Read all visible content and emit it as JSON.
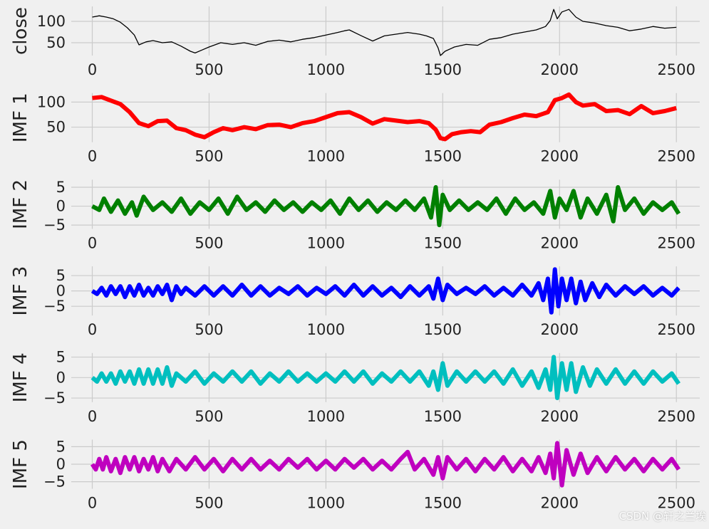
{
  "chart_data": [
    {
      "type": "line",
      "ylabel": "close",
      "color": "#000000",
      "xlim": [
        -90,
        2600
      ],
      "ylim": [
        20,
        135
      ],
      "xticks": [
        0,
        500,
        1000,
        1500,
        2000,
        2500
      ],
      "yticks": [
        50,
        100
      ],
      "grid": true,
      "x": [
        0,
        30,
        60,
        90,
        120,
        150,
        180,
        200,
        230,
        260,
        300,
        340,
        380,
        420,
        440,
        470,
        500,
        550,
        600,
        650,
        700,
        750,
        800,
        850,
        900,
        950,
        1000,
        1050,
        1080,
        1100,
        1130,
        1160,
        1200,
        1250,
        1300,
        1350,
        1400,
        1430,
        1460,
        1480,
        1490,
        1510,
        1550,
        1600,
        1650,
        1700,
        1750,
        1800,
        1850,
        1900,
        1940,
        1960,
        1975,
        1990,
        2010,
        2040,
        2070,
        2100,
        2150,
        2200,
        2250,
        2300,
        2350,
        2400,
        2450,
        2500
      ],
      "y": [
        110,
        113,
        110,
        106,
        98,
        85,
        68,
        45,
        52,
        55,
        50,
        52,
        42,
        30,
        26,
        33,
        40,
        50,
        46,
        50,
        44,
        53,
        56,
        52,
        58,
        62,
        68,
        74,
        78,
        80,
        72,
        64,
        54,
        66,
        70,
        74,
        70,
        66,
        60,
        38,
        20,
        30,
        40,
        46,
        44,
        58,
        62,
        70,
        75,
        80,
        88,
        102,
        128,
        106,
        122,
        128,
        110,
        100,
        96,
        90,
        86,
        78,
        82,
        88,
        84,
        86
      ]
    },
    {
      "type": "line",
      "ylabel": "IMF 1",
      "color": "#ff0000",
      "xlim": [
        -90,
        2600
      ],
      "ylim": [
        20,
        118
      ],
      "xticks": [
        0,
        500,
        1000,
        1500,
        2000,
        2500
      ],
      "yticks": [
        50,
        100
      ],
      "grid": true,
      "x": [
        0,
        40,
        80,
        120,
        160,
        200,
        240,
        280,
        320,
        360,
        400,
        440,
        480,
        520,
        560,
        600,
        650,
        700,
        750,
        800,
        850,
        900,
        950,
        1000,
        1050,
        1100,
        1150,
        1200,
        1250,
        1300,
        1350,
        1400,
        1440,
        1470,
        1490,
        1510,
        1540,
        1580,
        1620,
        1660,
        1700,
        1750,
        1800,
        1850,
        1900,
        1950,
        1980,
        2010,
        2040,
        2070,
        2100,
        2150,
        2200,
        2250,
        2300,
        2350,
        2400,
        2450,
        2500
      ],
      "y": [
        108,
        110,
        103,
        96,
        80,
        58,
        52,
        62,
        63,
        48,
        44,
        35,
        30,
        40,
        48,
        44,
        50,
        46,
        54,
        55,
        50,
        58,
        62,
        70,
        78,
        80,
        70,
        57,
        66,
        63,
        60,
        62,
        58,
        45,
        28,
        26,
        36,
        40,
        42,
        40,
        55,
        60,
        68,
        75,
        72,
        80,
        104,
        108,
        115,
        100,
        93,
        96,
        82,
        84,
        76,
        92,
        78,
        82,
        88
      ]
    },
    {
      "type": "line",
      "ylabel": "IMF 2",
      "color": "#008000",
      "xlim": [
        -90,
        2600
      ],
      "ylim": [
        -6,
        7
      ],
      "xticks": [
        0,
        500,
        1000,
        1500,
        2000,
        2500
      ],
      "yticks": [
        -5,
        0,
        5
      ],
      "grid": true,
      "x": [
        0,
        30,
        50,
        80,
        110,
        140,
        170,
        190,
        220,
        260,
        300,
        340,
        380,
        420,
        460,
        500,
        540,
        580,
        620,
        660,
        700,
        740,
        780,
        820,
        860,
        900,
        940,
        980,
        1020,
        1060,
        1100,
        1140,
        1180,
        1220,
        1260,
        1300,
        1340,
        1380,
        1420,
        1450,
        1470,
        1485,
        1500,
        1530,
        1570,
        1610,
        1650,
        1690,
        1730,
        1770,
        1810,
        1850,
        1890,
        1930,
        1960,
        1980,
        2000,
        2030,
        2060,
        2090,
        2120,
        2160,
        2200,
        2230,
        2250,
        2280,
        2320,
        2360,
        2400,
        2440,
        2480,
        2510
      ],
      "y": [
        0,
        -1,
        2,
        -1.5,
        1.5,
        -2,
        1,
        -2.5,
        2.5,
        -1,
        1,
        -1.5,
        2,
        -2,
        1,
        -1,
        2,
        -2,
        2.5,
        -1,
        1,
        -1.5,
        1.5,
        -1,
        1,
        -1.5,
        1,
        -1,
        1.5,
        -2,
        2,
        -1,
        1.5,
        -1.5,
        1,
        -1,
        1.5,
        -1,
        2,
        -3,
        5,
        -5,
        3,
        -1,
        1.5,
        -1,
        1,
        -1,
        2,
        -2,
        2,
        -1,
        1,
        -2,
        4,
        -3,
        2,
        -1,
        4,
        -3,
        2,
        -2,
        3,
        -4,
        5,
        -1,
        2,
        -2,
        1,
        -1,
        1,
        -2
      ]
    },
    {
      "type": "line",
      "ylabel": "IMF 3",
      "color": "#0000ff",
      "xlim": [
        -90,
        2600
      ],
      "ylim": [
        -8,
        8
      ],
      "xticks": [
        0,
        500,
        1000,
        1500,
        2000,
        2500
      ],
      "yticks": [
        -5,
        0,
        5
      ],
      "grid": true,
      "x": [
        0,
        20,
        40,
        60,
        80,
        100,
        120,
        140,
        160,
        180,
        200,
        220,
        240,
        260,
        280,
        300,
        320,
        340,
        360,
        380,
        400,
        440,
        480,
        520,
        560,
        600,
        640,
        680,
        720,
        760,
        800,
        840,
        880,
        920,
        960,
        1000,
        1040,
        1080,
        1120,
        1160,
        1200,
        1240,
        1280,
        1320,
        1360,
        1400,
        1440,
        1460,
        1480,
        1500,
        1520,
        1560,
        1600,
        1640,
        1680,
        1720,
        1760,
        1800,
        1840,
        1880,
        1910,
        1930,
        1950,
        1965,
        1980,
        1995,
        2010,
        2030,
        2050,
        2070,
        2090,
        2110,
        2140,
        2170,
        2200,
        2240,
        2280,
        2320,
        2360,
        2400,
        2440,
        2480,
        2510
      ],
      "y": [
        0,
        -1,
        1,
        -1.5,
        1.5,
        -1,
        1.5,
        -2,
        1.5,
        -1.5,
        2,
        -1.5,
        1,
        -1.5,
        1.5,
        -1,
        2,
        -3,
        1.5,
        -1,
        1,
        -1.5,
        1.5,
        -1.5,
        1.5,
        -1.5,
        2,
        -1.5,
        1.5,
        -1.5,
        1,
        -1,
        1.5,
        -1.5,
        1,
        -1,
        1.5,
        -1.5,
        2,
        -1.5,
        1.5,
        -1.5,
        1,
        -2,
        1.5,
        -1.5,
        1.5,
        -2.5,
        4,
        -3,
        2,
        -1,
        1,
        -1,
        1.5,
        -1.5,
        1,
        -1.5,
        2,
        -1.5,
        2.5,
        -3,
        4,
        -7,
        7,
        -5,
        4,
        -3,
        4,
        -4,
        3,
        -3,
        2.5,
        -2,
        2,
        -1.5,
        1.5,
        -1,
        1.5,
        -1.5,
        1,
        -1.5,
        1
      ]
    },
    {
      "type": "line",
      "ylabel": "IMF 4",
      "color": "#00bfbf",
      "xlim": [
        -90,
        2600
      ],
      "ylim": [
        -6,
        6
      ],
      "xticks": [
        0,
        500,
        1000,
        1500,
        2000,
        2500
      ],
      "yticks": [
        -5,
        0,
        5
      ],
      "grid": true,
      "x": [
        0,
        20,
        40,
        60,
        80,
        100,
        120,
        140,
        160,
        180,
        200,
        220,
        240,
        260,
        280,
        300,
        320,
        340,
        360,
        400,
        440,
        480,
        520,
        560,
        600,
        640,
        680,
        720,
        760,
        800,
        840,
        880,
        920,
        960,
        1000,
        1040,
        1080,
        1120,
        1160,
        1200,
        1240,
        1280,
        1320,
        1360,
        1400,
        1440,
        1460,
        1480,
        1500,
        1520,
        1560,
        1600,
        1640,
        1680,
        1720,
        1760,
        1800,
        1840,
        1880,
        1910,
        1940,
        1960,
        1975,
        1990,
        2010,
        2030,
        2050,
        2070,
        2100,
        2130,
        2160,
        2200,
        2240,
        2280,
        2320,
        2360,
        2400,
        2440,
        2480,
        2510
      ],
      "y": [
        0,
        -1,
        1,
        -1,
        1,
        -1.5,
        1.5,
        -1,
        1.5,
        -1.5,
        2,
        -1.5,
        2,
        -1.5,
        2,
        -1.5,
        2.5,
        -2,
        1,
        -1,
        1.5,
        -1.5,
        1,
        -1,
        1.5,
        -1,
        1.5,
        -1.5,
        1,
        -1,
        1.5,
        -1,
        1,
        -1,
        1,
        -1,
        1.5,
        -1,
        1.5,
        -1.5,
        1,
        -1,
        1.5,
        -1,
        1.5,
        -2,
        1.5,
        -3,
        3.5,
        -2,
        1.5,
        -1,
        1.5,
        -1,
        1.5,
        -1.5,
        2,
        -2,
        1.5,
        -2.5,
        2,
        -3,
        5,
        -5,
        3.5,
        -3,
        3.5,
        -3.5,
        2.5,
        -2,
        2,
        -1.5,
        2,
        -1.5,
        1.5,
        -1.5,
        1.5,
        -1,
        1,
        -1.5
      ]
    },
    {
      "type": "line",
      "ylabel": "IMF 5",
      "color": "#bf00bf",
      "xlim": [
        -90,
        2600
      ],
      "ylim": [
        -7,
        7
      ],
      "xticks": [
        0,
        500,
        1000,
        1500,
        2000,
        2500
      ],
      "yticks": [
        -5,
        0,
        5
      ],
      "grid": true,
      "x": [
        0,
        15,
        30,
        45,
        60,
        80,
        100,
        120,
        140,
        160,
        180,
        200,
        220,
        240,
        260,
        280,
        300,
        330,
        360,
        400,
        440,
        480,
        520,
        560,
        600,
        640,
        680,
        720,
        760,
        800,
        840,
        880,
        920,
        960,
        1000,
        1040,
        1080,
        1120,
        1160,
        1200,
        1240,
        1280,
        1320,
        1350,
        1380,
        1420,
        1460,
        1480,
        1500,
        1520,
        1560,
        1600,
        1640,
        1680,
        1720,
        1760,
        1800,
        1840,
        1880,
        1910,
        1940,
        1960,
        1975,
        1990,
        2010,
        2030,
        2060,
        2090,
        2120,
        2160,
        2200,
        2240,
        2280,
        2320,
        2360,
        2400,
        2440,
        2480,
        2510
      ],
      "y": [
        0,
        -1.5,
        1.5,
        -1.5,
        2,
        -2,
        1.5,
        -2.5,
        2,
        -1.5,
        2,
        -2,
        1.5,
        -1.5,
        2,
        -2,
        1.5,
        -2,
        1.5,
        -1.5,
        2,
        -1.5,
        1.5,
        -2,
        1.5,
        -1.5,
        1.5,
        -1.5,
        1,
        -1.5,
        1.5,
        -1,
        1.5,
        -1.5,
        1,
        -1.5,
        1.5,
        -1,
        1.5,
        -1.5,
        1,
        -1.5,
        1.5,
        3.5,
        -1.5,
        1.5,
        -3,
        2,
        -4,
        2,
        -1.5,
        1.5,
        -2,
        1.5,
        -1.5,
        2,
        -2,
        1.5,
        -2,
        2,
        -2.5,
        3,
        -4,
        6,
        -6,
        4,
        -3,
        3,
        -2.5,
        2,
        -2,
        2,
        -1.5,
        1.5,
        -2,
        1.5,
        -1.5,
        1.5,
        -1.5
      ]
    }
  ],
  "watermark": "CSDN @轩之兰埃"
}
